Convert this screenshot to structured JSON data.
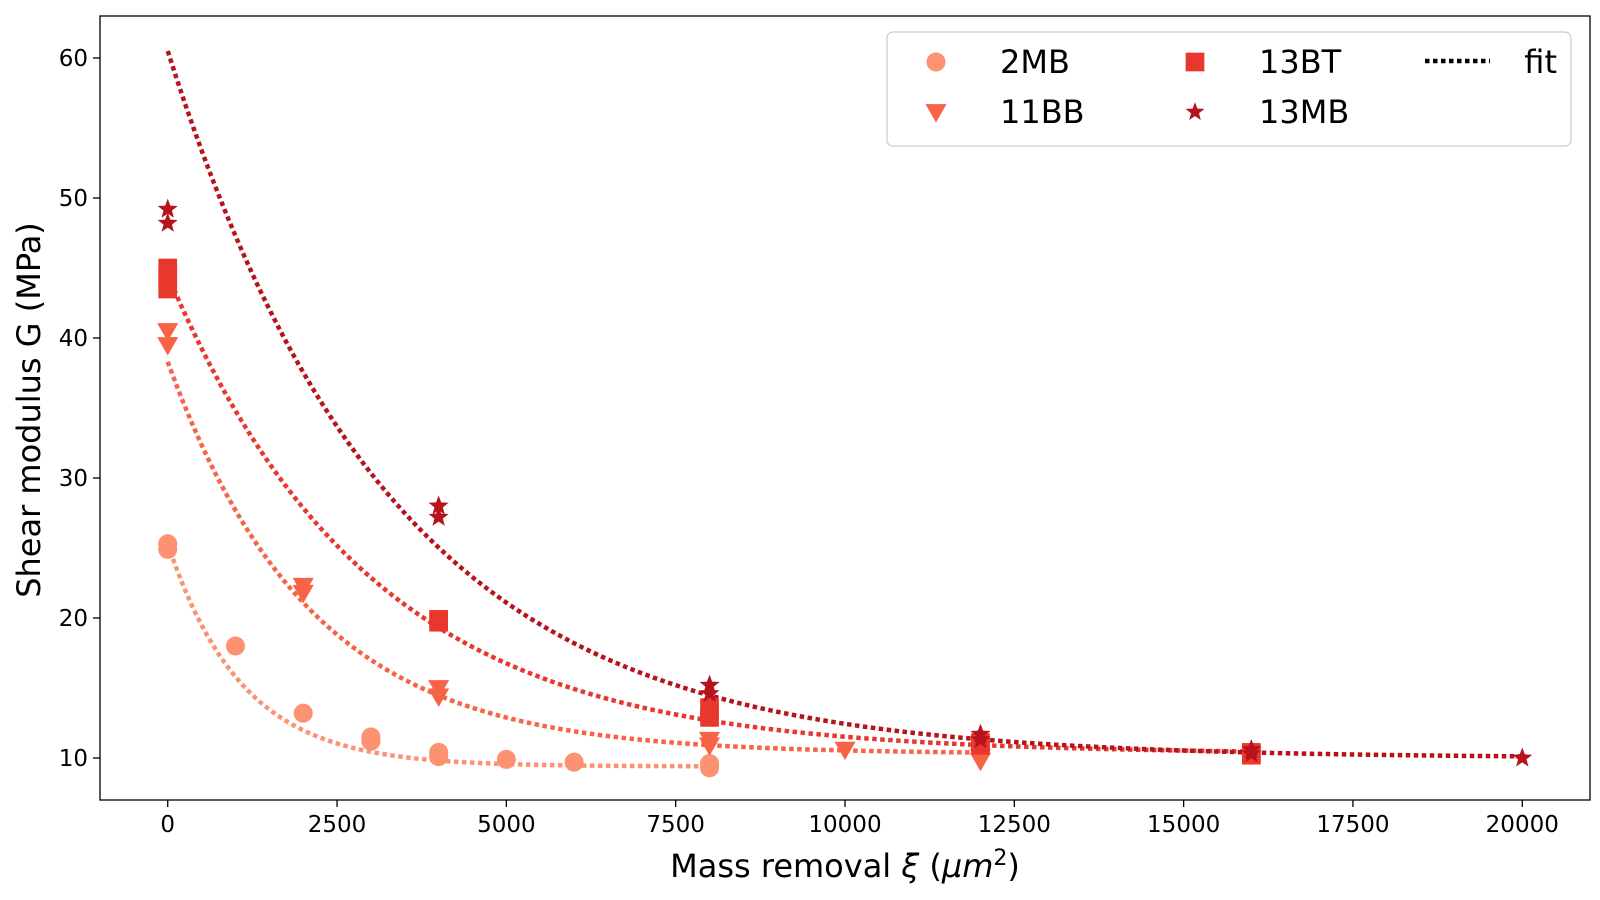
{
  "chart_data": {
    "type": "scatter",
    "title": "",
    "xlabel_main": "Mass removal ",
    "xlabel_xi": "ξ",
    "xlabel_unit_open": " (",
    "xlabel_mu": "μm",
    "xlabel_exp": "2",
    "xlabel_unit_close": ")",
    "ylabel": "Shear modulus G (MPa)",
    "xlim": [
      -1000,
      21000
    ],
    "ylim": [
      7,
      63
    ],
    "xticks": [
      0,
      2500,
      5000,
      7500,
      10000,
      12500,
      15000,
      17500,
      20000
    ],
    "yticks": [
      10,
      20,
      30,
      40,
      50,
      60
    ],
    "series": [
      {
        "name": "2MB",
        "marker": "circle",
        "color": "#fc9272",
        "points": [
          [
            0,
            25.3
          ],
          [
            0,
            24.9
          ],
          [
            1000,
            18.0
          ],
          [
            2000,
            13.2
          ],
          [
            3000,
            11.5
          ],
          [
            3000,
            11.2
          ],
          [
            4000,
            10.4
          ],
          [
            4000,
            10.1
          ],
          [
            5000,
            9.9
          ],
          [
            6000,
            9.7
          ],
          [
            8000,
            9.6
          ],
          [
            8000,
            9.3
          ]
        ],
        "fit": {
          "a": 9.4,
          "b": 15.9,
          "c": 1100,
          "xmax": 8000
        }
      },
      {
        "name": "11BB",
        "marker": "triangle-down",
        "color": "#f76347",
        "points": [
          [
            0,
            40.5
          ],
          [
            0,
            39.5
          ],
          [
            2000,
            22.3
          ],
          [
            2000,
            21.8
          ],
          [
            4000,
            15.0
          ],
          [
            4000,
            14.4
          ],
          [
            8000,
            11.3
          ],
          [
            8000,
            10.9
          ],
          [
            10000,
            10.6
          ],
          [
            12000,
            10.1
          ],
          [
            12000,
            9.8
          ]
        ],
        "fit": {
          "a": 10.3,
          "b": 28.0,
          "c": 2100,
          "xmax": 12000
        }
      },
      {
        "name": "13BT",
        "marker": "square",
        "color": "#e8382d",
        "points": [
          [
            0,
            45.0
          ],
          [
            0,
            44.3
          ],
          [
            0,
            43.5
          ],
          [
            4000,
            19.9
          ],
          [
            4000,
            19.7
          ],
          [
            8000,
            13.6
          ],
          [
            8000,
            12.9
          ],
          [
            12000,
            11.1
          ],
          [
            12000,
            10.9
          ],
          [
            16000,
            10.4
          ],
          [
            16000,
            10.2
          ]
        ],
        "fit": {
          "a": 10.3,
          "b": 34.2,
          "c": 3000,
          "xmax": 16000
        }
      },
      {
        "name": "13MB",
        "marker": "star",
        "color": "#b7131d",
        "points": [
          [
            0,
            49.2
          ],
          [
            0,
            48.2
          ],
          [
            4000,
            28.0
          ],
          [
            4000,
            27.2
          ],
          [
            8000,
            15.2
          ],
          [
            8000,
            14.6
          ],
          [
            12000,
            11.7
          ],
          [
            12000,
            11.3
          ],
          [
            16000,
            10.6
          ],
          [
            16000,
            10.3
          ],
          [
            20000,
            10.0
          ]
        ],
        "fit": {
          "a": 10.0,
          "b": 50.5,
          "c": 3300,
          "xmax": 20000
        }
      }
    ],
    "legend": {
      "position": "upper right",
      "fit_label": "fit",
      "fit_color": "#000000"
    }
  }
}
